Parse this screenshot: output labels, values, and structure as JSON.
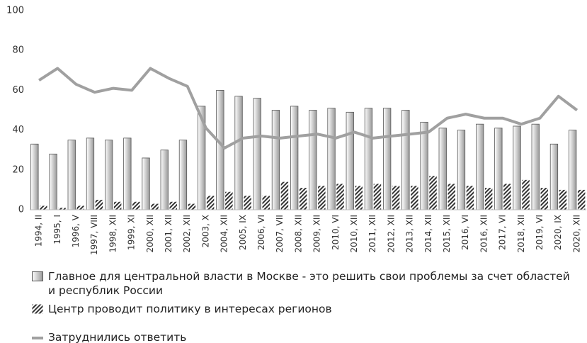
{
  "chart_data": {
    "type": "bar",
    "categories": [
      "1994, II",
      "1995, I",
      "1996, V",
      "1997, VIII",
      "1998, XII",
      "1999, XI",
      "2000, XII",
      "2001, XII",
      "2002, XII",
      "2003, X",
      "2004, XII",
      "2005, IX",
      "2006, VI",
      "2007, VII",
      "2008, XII",
      "2009, XII",
      "2010, VI",
      "2010, XII",
      "2011, XII",
      "2012, XII",
      "2013, XII",
      "2014, XII",
      "2015, XII",
      "2016, VI",
      "2016, XII",
      "2017, VI",
      "2018, XII",
      "2019, VI",
      "2020, IX",
      "2020, XII"
    ],
    "series": [
      {
        "name": "Главное для центральной власти в Москве - это решить свои проблемы за счет областей и республик России",
        "type": "bar",
        "color": "#999999",
        "values": [
          33,
          28,
          35,
          36,
          35,
          36,
          26,
          30,
          35,
          52,
          60,
          57,
          56,
          50,
          52,
          50,
          51,
          49,
          51,
          51,
          50,
          44,
          41,
          40,
          43,
          41,
          42,
          43,
          33,
          40
        ]
      },
      {
        "name": "Центр проводит политику в интересах регионов",
        "type": "hatched-bar",
        "color": "#333333",
        "values": [
          2,
          1,
          2,
          5,
          4,
          4,
          3,
          4,
          3,
          7,
          9,
          7,
          7,
          14,
          11,
          12,
          13,
          12,
          13,
          12,
          12,
          17,
          13,
          12,
          11,
          13,
          15,
          11,
          10,
          10
        ]
      },
      {
        "name": "Затруднились ответить",
        "type": "line",
        "color": "#a0a0a0",
        "values": [
          65,
          71,
          63,
          59,
          61,
          60,
          71,
          66,
          62,
          41,
          31,
          36,
          37,
          36,
          37,
          38,
          36,
          39,
          36,
          37,
          38,
          39,
          46,
          48,
          46,
          46,
          43,
          46,
          57,
          50
        ]
      }
    ],
    "ylim": [
      0,
      100
    ],
    "yticks": [
      0,
      20,
      40,
      60,
      80,
      100
    ],
    "grid": false
  }
}
